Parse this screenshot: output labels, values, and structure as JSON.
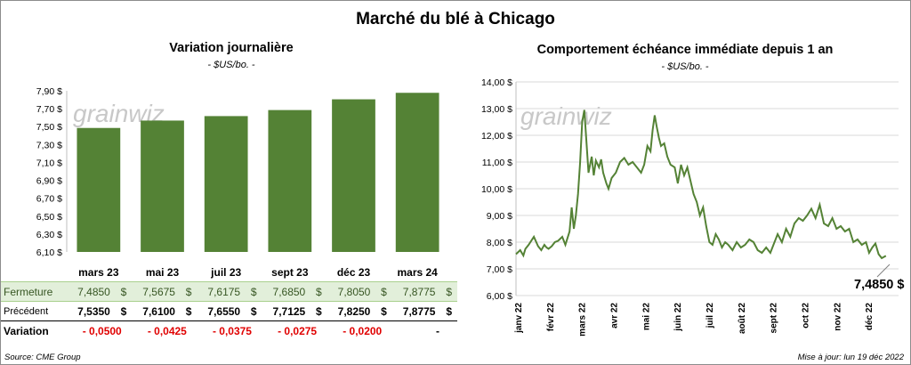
{
  "title": "Marché du blé à Chicago",
  "left_chart": {
    "title": "Variation  journalière",
    "unit": "- $US/bo. -"
  },
  "right_chart": {
    "title": "Comportement  échéance immédiate depuis 1 an",
    "unit": "- $US/bo. -",
    "last_value_label": "7,4850 $"
  },
  "watermark": "grainwiz",
  "footer": {
    "source": "Source: CME Group",
    "updated": "Mise à jour: lun 19 déc 2022"
  },
  "table": {
    "rows": [
      {
        "label": "Fermeture",
        "values": [
          "7,4850",
          "7,5675",
          "7,6175",
          "7,6850",
          "7,8050",
          "7,8775"
        ],
        "currency": "$"
      },
      {
        "label": "Précédent",
        "values": [
          "7,5350",
          "7,6100",
          "7,6550",
          "7,7125",
          "7,8250",
          "7,8775"
        ],
        "currency": "$"
      },
      {
        "label": "Variation",
        "values": [
          "- 0,0500",
          "- 0,0425",
          "- 0,0375",
          "- 0,0275",
          "- 0,0200",
          "-"
        ]
      }
    ]
  },
  "colors": {
    "bar": "#548235",
    "line": "#548235",
    "fermeture_bg": "#e2efda"
  },
  "chart_data": [
    {
      "type": "bar",
      "categories": [
        "mars 23",
        "mai 23",
        "juil 23",
        "sept 23",
        "déc 23",
        "mars 24"
      ],
      "values": [
        7.485,
        7.5675,
        7.6175,
        7.685,
        7.805,
        7.8775
      ],
      "ylim": [
        6.1,
        7.9
      ],
      "yticks": [
        "6,10 $",
        "6,30 $",
        "6,50 $",
        "6,70 $",
        "6,90 $",
        "7,10 $",
        "7,30 $",
        "7,50 $",
        "7,70 $",
        "7,90 $"
      ],
      "grid": false
    },
    {
      "type": "line",
      "ylim": [
        6.0,
        14.0
      ],
      "yticks": [
        "6,00 $",
        "7,00 $",
        "8,00 $",
        "9,00 $",
        "10,00 $",
        "11,00 $",
        "12,00 $",
        "13,00 $",
        "14,00 $"
      ],
      "xticks": [
        "janv 22",
        "févr 22",
        "mars 22",
        "avr 22",
        "mai 22",
        "juin 22",
        "juil 22",
        "août 22",
        "sept 22",
        "oct 22",
        "nov 22",
        "déc 22"
      ],
      "grid": true,
      "x": [
        "2022-01-01",
        "2022-01-05",
        "2022-01-08",
        "2022-01-10",
        "2022-01-13",
        "2022-01-18",
        "2022-01-22",
        "2022-01-25",
        "2022-01-28",
        "2022-01-30",
        "2022-02-01",
        "2022-02-04",
        "2022-02-07",
        "2022-02-10",
        "2022-02-14",
        "2022-02-17",
        "2022-02-21",
        "2022-02-23",
        "2022-02-25",
        "2022-02-27",
        "2022-03-01",
        "2022-03-03",
        "2022-03-05",
        "2022-03-07",
        "2022-03-09",
        "2022-03-11",
        "2022-03-14",
        "2022-03-16",
        "2022-03-18",
        "2022-03-21",
        "2022-03-23",
        "2022-03-25",
        "2022-03-28",
        "2022-03-30",
        "2022-04-02",
        "2022-04-06",
        "2022-04-10",
        "2022-04-14",
        "2022-04-18",
        "2022-04-22",
        "2022-04-26",
        "2022-04-30",
        "2022-05-03",
        "2022-05-06",
        "2022-05-09",
        "2022-05-11",
        "2022-05-13",
        "2022-05-15",
        "2022-05-17",
        "2022-05-19",
        "2022-05-22",
        "2022-05-25",
        "2022-05-28",
        "2022-06-01",
        "2022-06-04",
        "2022-06-07",
        "2022-06-10",
        "2022-06-13",
        "2022-06-16",
        "2022-06-19",
        "2022-06-22",
        "2022-06-25",
        "2022-06-28",
        "2022-07-01",
        "2022-07-04",
        "2022-07-07",
        "2022-07-10",
        "2022-07-13",
        "2022-07-16",
        "2022-07-19",
        "2022-07-22",
        "2022-07-26",
        "2022-07-30",
        "2022-08-03",
        "2022-08-07",
        "2022-08-11",
        "2022-08-15",
        "2022-08-19",
        "2022-08-23",
        "2022-08-27",
        "2022-08-31",
        "2022-09-03",
        "2022-09-07",
        "2022-09-11",
        "2022-09-15",
        "2022-09-19",
        "2022-09-23",
        "2022-09-27",
        "2022-10-01",
        "2022-10-05",
        "2022-10-09",
        "2022-10-13",
        "2022-10-17",
        "2022-10-21",
        "2022-10-25",
        "2022-10-29",
        "2022-11-02",
        "2022-11-06",
        "2022-11-10",
        "2022-11-14",
        "2022-11-18",
        "2022-11-22",
        "2022-11-26",
        "2022-11-30",
        "2022-12-03",
        "2022-12-06",
        "2022-12-09",
        "2022-12-12",
        "2022-12-15",
        "2022-12-19"
      ],
      "y": [
        7.55,
        7.7,
        7.5,
        7.75,
        7.9,
        8.2,
        7.85,
        7.7,
        7.9,
        7.8,
        7.75,
        7.85,
        8.0,
        8.05,
        8.2,
        7.9,
        8.4,
        9.3,
        8.5,
        9.0,
        9.8,
        11.0,
        12.5,
        12.95,
        11.8,
        10.6,
        11.2,
        10.5,
        11.05,
        10.8,
        11.1,
        10.6,
        10.2,
        10.0,
        10.4,
        10.6,
        11.0,
        11.15,
        10.9,
        11.0,
        10.8,
        10.6,
        10.9,
        11.6,
        11.4,
        12.2,
        12.75,
        12.3,
        11.9,
        11.6,
        11.7,
        11.2,
        10.9,
        10.8,
        10.2,
        10.9,
        10.5,
        10.8,
        10.3,
        9.8,
        9.5,
        9.0,
        9.3,
        8.6,
        8.0,
        7.9,
        8.3,
        8.1,
        7.8,
        8.0,
        7.9,
        7.7,
        8.0,
        7.8,
        7.9,
        8.1,
        8.0,
        7.7,
        7.6,
        7.8,
        7.6,
        7.9,
        8.3,
        8.0,
        8.5,
        8.2,
        8.7,
        8.9,
        8.8,
        9.0,
        9.25,
        8.9,
        9.4,
        8.7,
        8.6,
        8.9,
        8.5,
        8.6,
        8.4,
        8.5,
        8.0,
        8.1,
        7.9,
        8.0,
        7.6,
        7.8,
        7.95,
        7.55,
        7.4,
        7.485
      ]
    }
  ]
}
